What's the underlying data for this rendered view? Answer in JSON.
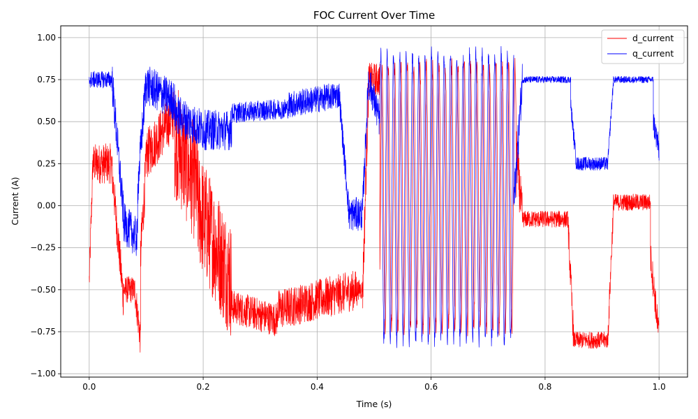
{
  "chart_data": {
    "type": "line",
    "title": "FOC Current Over Time",
    "xlabel": "Time (s)",
    "ylabel": "Current (A)",
    "xlim": [
      -0.05,
      1.05
    ],
    "ylim": [
      -1.02,
      1.07
    ],
    "xticks": [
      0.0,
      0.2,
      0.4,
      0.6,
      0.8,
      1.0
    ],
    "xtick_labels": [
      "0.0",
      "0.2",
      "0.4",
      "0.6",
      "0.8",
      "1.0"
    ],
    "yticks": [
      -1.0,
      -0.75,
      -0.5,
      -0.25,
      0.0,
      0.25,
      0.5,
      0.75,
      1.0
    ],
    "ytick_labels": [
      "−1.00",
      "−0.75",
      "−0.50",
      "−0.25",
      "0.00",
      "0.25",
      "0.50",
      "0.75",
      "1.00"
    ],
    "grid": true,
    "legend_position": "top-right",
    "series": [
      {
        "name": "d_current",
        "color": "#ff0000",
        "segments": [
          {
            "t0": 0.0,
            "t1": 0.006,
            "base": -0.45,
            "end": 0.2,
            "amp": 0.1
          },
          {
            "t0": 0.006,
            "t1": 0.04,
            "base": 0.25,
            "amp": 0.12
          },
          {
            "t0": 0.04,
            "t1": 0.06,
            "base": 0.2,
            "end": -0.55,
            "amp": 0.12
          },
          {
            "t0": 0.06,
            "t1": 0.08,
            "base": -0.5,
            "amp": 0.08
          },
          {
            "t0": 0.08,
            "t1": 0.09,
            "base": -0.5,
            "end": -0.8,
            "amp": 0.1
          },
          {
            "t0": 0.09,
            "t1": 0.1,
            "base": -0.3,
            "end": 0.25,
            "amp": 0.15
          },
          {
            "t0": 0.1,
            "t1": 0.15,
            "base": 0.3,
            "end": 0.55,
            "amp": 0.15
          },
          {
            "t0": 0.15,
            "t1": 0.19,
            "base": 0.4,
            "end": 0.1,
            "amp": 0.35
          },
          {
            "t0": 0.19,
            "t1": 0.25,
            "base": 0.0,
            "end": -0.45,
            "amp": 0.35
          },
          {
            "t0": 0.25,
            "t1": 0.33,
            "base": -0.6,
            "end": -0.68,
            "amp": 0.1
          },
          {
            "t0": 0.33,
            "t1": 0.47,
            "base": -0.62,
            "end": -0.5,
            "amp": 0.12
          },
          {
            "t0": 0.47,
            "t1": 0.48,
            "base": -0.5,
            "amp": 0.06
          },
          {
            "t0": 0.48,
            "t1": 0.49,
            "base": -0.5,
            "end": 0.7,
            "amp": 0.15
          },
          {
            "t0": 0.49,
            "t1": 0.51,
            "base": 0.75,
            "amp": 0.1
          },
          {
            "t0": 0.51,
            "t1": 0.75,
            "osc": true,
            "freq": 90,
            "center": 0.05,
            "oscamp": 0.78,
            "amp": 0.05
          },
          {
            "t0": 0.75,
            "t1": 0.76,
            "base": 0.3,
            "end": -0.08,
            "amp": 0.15
          },
          {
            "t0": 0.76,
            "t1": 0.84,
            "base": -0.08,
            "amp": 0.05
          },
          {
            "t0": 0.84,
            "t1": 0.85,
            "base": -0.1,
            "end": -0.78,
            "amp": 0.1
          },
          {
            "t0": 0.85,
            "t1": 0.91,
            "base": -0.8,
            "amp": 0.05
          },
          {
            "t0": 0.91,
            "t1": 0.92,
            "base": -0.8,
            "end": 0.0,
            "amp": 0.08
          },
          {
            "t0": 0.92,
            "t1": 0.985,
            "base": 0.02,
            "amp": 0.05
          },
          {
            "t0": 0.985,
            "t1": 1.0,
            "base": -0.3,
            "end": -0.78,
            "amp": 0.1
          }
        ]
      },
      {
        "name": "q_current",
        "color": "#0000ff",
        "segments": [
          {
            "t0": 0.0,
            "t1": 0.04,
            "base": 0.75,
            "amp": 0.05
          },
          {
            "t0": 0.04,
            "t1": 0.06,
            "base": 0.75,
            "end": -0.05,
            "amp": 0.12
          },
          {
            "t0": 0.06,
            "t1": 0.085,
            "base": -0.1,
            "end": -0.2,
            "amp": 0.12
          },
          {
            "t0": 0.085,
            "t1": 0.1,
            "base": 0.1,
            "end": 0.75,
            "amp": 0.12
          },
          {
            "t0": 0.1,
            "t1": 0.15,
            "base": 0.72,
            "end": 0.62,
            "amp": 0.12
          },
          {
            "t0": 0.15,
            "t1": 0.2,
            "base": 0.55,
            "end": 0.45,
            "amp": 0.12
          },
          {
            "t0": 0.2,
            "t1": 0.25,
            "base": 0.45,
            "amp": 0.12
          },
          {
            "t0": 0.25,
            "t1": 0.35,
            "base": 0.55,
            "end": 0.58,
            "amp": 0.06
          },
          {
            "t0": 0.35,
            "t1": 0.44,
            "base": 0.6,
            "end": 0.66,
            "amp": 0.08
          },
          {
            "t0": 0.44,
            "t1": 0.455,
            "base": 0.6,
            "end": 0.0,
            "amp": 0.08
          },
          {
            "t0": 0.455,
            "t1": 0.48,
            "base": -0.05,
            "amp": 0.1
          },
          {
            "t0": 0.48,
            "t1": 0.49,
            "base": 0.0,
            "end": 0.75,
            "amp": 0.1
          },
          {
            "t0": 0.49,
            "t1": 0.51,
            "base": 0.75,
            "end": 0.5,
            "amp": 0.1
          },
          {
            "t0": 0.51,
            "t1": 0.745,
            "osc": true,
            "freq": 90,
            "center": 0.05,
            "oscamp": 0.85,
            "phase": 1.2,
            "amp": 0.05
          },
          {
            "t0": 0.745,
            "t1": 0.76,
            "base": 0.0,
            "end": 0.75,
            "amp": 0.12
          },
          {
            "t0": 0.76,
            "t1": 0.845,
            "base": 0.75,
            "amp": 0.02
          },
          {
            "t0": 0.845,
            "t1": 0.855,
            "base": 0.6,
            "end": 0.25,
            "amp": 0.05
          },
          {
            "t0": 0.855,
            "t1": 0.91,
            "base": 0.25,
            "amp": 0.04
          },
          {
            "t0": 0.91,
            "t1": 0.92,
            "base": 0.25,
            "end": 0.75,
            "amp": 0.04
          },
          {
            "t0": 0.92,
            "t1": 0.99,
            "base": 0.75,
            "amp": 0.02
          },
          {
            "t0": 0.99,
            "t1": 1.0,
            "base": 0.5,
            "end": 0.33,
            "amp": 0.08
          }
        ]
      }
    ]
  }
}
